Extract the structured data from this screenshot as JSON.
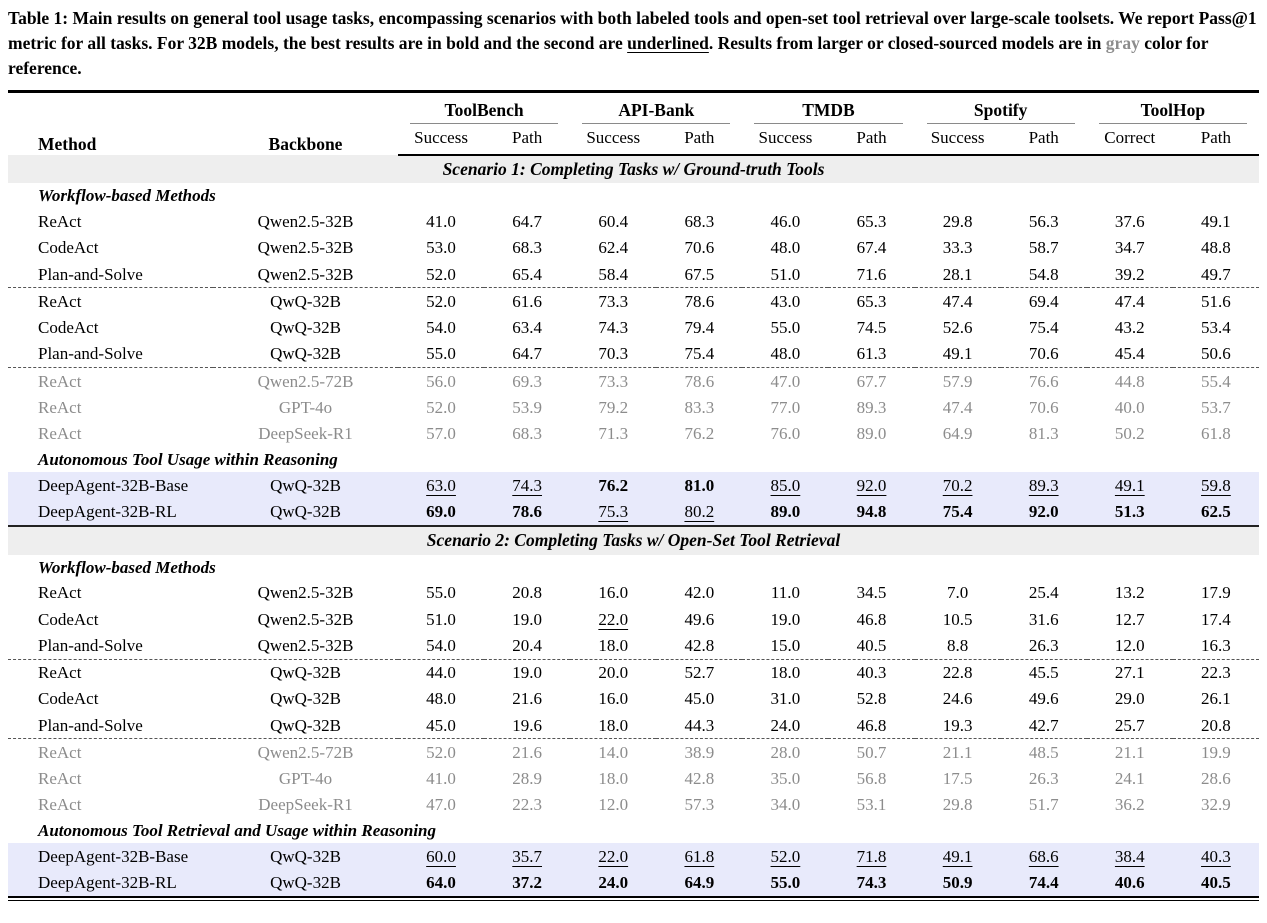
{
  "colors": {
    "highlight": "#e8eafb",
    "band": "#eeeeee",
    "gray_text": "#8c8c8c"
  },
  "caption": {
    "segments": [
      {
        "text": "Table 1: Main results on general tool usage tasks, encompassing scenarios with both labeled tools and open-set tool retrieval over large-scale toolsets. We report Pass@1 metric for all tasks. For 32B models, the best results are in bold and the second are ",
        "style": "plain"
      },
      {
        "text": "underlined",
        "style": "u"
      },
      {
        "text": ". Results from larger or closed-sourced models are in ",
        "style": "plain"
      },
      {
        "text": "gray",
        "style": "gray"
      },
      {
        "text": " color for reference.",
        "style": "plain"
      }
    ]
  },
  "table": {
    "header": {
      "method": "Method",
      "backbone": "Backbone",
      "groups": [
        {
          "name": "ToolBench",
          "cols": [
            "Success",
            "Path"
          ]
        },
        {
          "name": "API-Bank",
          "cols": [
            "Success",
            "Path"
          ]
        },
        {
          "name": "TMDB",
          "cols": [
            "Success",
            "Path"
          ]
        },
        {
          "name": "Spotify",
          "cols": [
            "Success",
            "Path"
          ]
        },
        {
          "name": "ToolHop",
          "cols": [
            "Correct",
            "Path"
          ]
        }
      ]
    },
    "sections": [
      {
        "title": "Scenario 1: Completing Tasks w/ Ground-truth Tools",
        "blocks": [
          {
            "subtitle": "Workflow-based Methods",
            "rows": [
              {
                "method": "ReAct",
                "backbone": "Qwen2.5-32B",
                "style": "",
                "values": [
                  "41.0",
                  "64.7",
                  "60.4",
                  "68.3",
                  "46.0",
                  "65.3",
                  "29.8",
                  "56.3",
                  "37.6",
                  "49.1"
                ],
                "marks": [
                  "",
                  "",
                  "",
                  "",
                  "",
                  "",
                  "",
                  "",
                  "",
                  ""
                ]
              },
              {
                "method": "CodeAct",
                "backbone": "Qwen2.5-32B",
                "style": "",
                "values": [
                  "53.0",
                  "68.3",
                  "62.4",
                  "70.6",
                  "48.0",
                  "67.4",
                  "33.3",
                  "58.7",
                  "34.7",
                  "48.8"
                ],
                "marks": [
                  "",
                  "",
                  "",
                  "",
                  "",
                  "",
                  "",
                  "",
                  "",
                  ""
                ]
              },
              {
                "method": "Plan-and-Solve",
                "backbone": "Qwen2.5-32B",
                "style": "",
                "dashed_after": true,
                "values": [
                  "52.0",
                  "65.4",
                  "58.4",
                  "67.5",
                  "51.0",
                  "71.6",
                  "28.1",
                  "54.8",
                  "39.2",
                  "49.7"
                ],
                "marks": [
                  "",
                  "",
                  "",
                  "",
                  "",
                  "",
                  "",
                  "",
                  "",
                  ""
                ]
              },
              {
                "method": "ReAct",
                "backbone": "QwQ-32B",
                "style": "",
                "values": [
                  "52.0",
                  "61.6",
                  "73.3",
                  "78.6",
                  "43.0",
                  "65.3",
                  "47.4",
                  "69.4",
                  "47.4",
                  "51.6"
                ],
                "marks": [
                  "",
                  "",
                  "",
                  "",
                  "",
                  "",
                  "",
                  "",
                  "",
                  ""
                ]
              },
              {
                "method": "CodeAct",
                "backbone": "QwQ-32B",
                "style": "",
                "values": [
                  "54.0",
                  "63.4",
                  "74.3",
                  "79.4",
                  "55.0",
                  "74.5",
                  "52.6",
                  "75.4",
                  "43.2",
                  "53.4"
                ],
                "marks": [
                  "",
                  "",
                  "",
                  "",
                  "",
                  "",
                  "",
                  "",
                  "",
                  ""
                ]
              },
              {
                "method": "Plan-and-Solve",
                "backbone": "QwQ-32B",
                "style": "",
                "dashed_after": true,
                "values": [
                  "55.0",
                  "64.7",
                  "70.3",
                  "75.4",
                  "48.0",
                  "61.3",
                  "49.1",
                  "70.6",
                  "45.4",
                  "50.6"
                ],
                "marks": [
                  "",
                  "",
                  "",
                  "",
                  "",
                  "",
                  "",
                  "",
                  "",
                  ""
                ]
              },
              {
                "method": "ReAct",
                "backbone": "Qwen2.5-72B",
                "style": "gray",
                "values": [
                  "56.0",
                  "69.3",
                  "73.3",
                  "78.6",
                  "47.0",
                  "67.7",
                  "57.9",
                  "76.6",
                  "44.8",
                  "55.4"
                ],
                "marks": [
                  "",
                  "",
                  "",
                  "",
                  "",
                  "",
                  "",
                  "",
                  "",
                  ""
                ]
              },
              {
                "method": "ReAct",
                "backbone": "GPT-4o",
                "style": "gray",
                "values": [
                  "52.0",
                  "53.9",
                  "79.2",
                  "83.3",
                  "77.0",
                  "89.3",
                  "47.4",
                  "70.6",
                  "40.0",
                  "53.7"
                ],
                "marks": [
                  "",
                  "",
                  "",
                  "",
                  "",
                  "",
                  "",
                  "",
                  "",
                  ""
                ]
              },
              {
                "method": "ReAct",
                "backbone": "DeepSeek-R1",
                "style": "gray",
                "values": [
                  "57.0",
                  "68.3",
                  "71.3",
                  "76.2",
                  "76.0",
                  "89.0",
                  "64.9",
                  "81.3",
                  "50.2",
                  "61.8"
                ],
                "marks": [
                  "",
                  "",
                  "",
                  "",
                  "",
                  "",
                  "",
                  "",
                  "",
                  ""
                ]
              }
            ]
          },
          {
            "subtitle": "Autonomous Tool Usage within Reasoning",
            "rows": [
              {
                "method": "DeepAgent-32B-Base",
                "backbone": "QwQ-32B",
                "style": "hl",
                "values": [
                  "63.0",
                  "74.3",
                  "76.2",
                  "81.0",
                  "85.0",
                  "92.0",
                  "70.2",
                  "89.3",
                  "49.1",
                  "59.8"
                ],
                "marks": [
                  "u",
                  "u",
                  "b",
                  "b",
                  "u",
                  "u",
                  "u",
                  "u",
                  "u",
                  "u"
                ]
              },
              {
                "method": "DeepAgent-32B-RL",
                "backbone": "QwQ-32B",
                "style": "hl",
                "values": [
                  "69.0",
                  "78.6",
                  "75.3",
                  "80.2",
                  "89.0",
                  "94.8",
                  "75.4",
                  "92.0",
                  "51.3",
                  "62.5"
                ],
                "marks": [
                  "b",
                  "b",
                  "u",
                  "u",
                  "b",
                  "b",
                  "b",
                  "b",
                  "b",
                  "b"
                ]
              }
            ]
          }
        ]
      },
      {
        "title": "Scenario 2: Completing Tasks w/ Open-Set Tool Retrieval",
        "blocks": [
          {
            "subtitle": "Workflow-based Methods",
            "rows": [
              {
                "method": "ReAct",
                "backbone": "Qwen2.5-32B",
                "style": "",
                "values": [
                  "55.0",
                  "20.8",
                  "16.0",
                  "42.0",
                  "11.0",
                  "34.5",
                  "7.0",
                  "25.4",
                  "13.2",
                  "17.9"
                ],
                "marks": [
                  "",
                  "",
                  "",
                  "",
                  "",
                  "",
                  "",
                  "",
                  "",
                  ""
                ]
              },
              {
                "method": "CodeAct",
                "backbone": "Qwen2.5-32B",
                "style": "",
                "values": [
                  "51.0",
                  "19.0",
                  "22.0",
                  "49.6",
                  "19.0",
                  "46.8",
                  "10.5",
                  "31.6",
                  "12.7",
                  "17.4"
                ],
                "marks": [
                  "",
                  "",
                  "u",
                  "",
                  "",
                  "",
                  "",
                  "",
                  "",
                  ""
                ]
              },
              {
                "method": "Plan-and-Solve",
                "backbone": "Qwen2.5-32B",
                "style": "",
                "dashed_after": true,
                "values": [
                  "54.0",
                  "20.4",
                  "18.0",
                  "42.8",
                  "15.0",
                  "40.5",
                  "8.8",
                  "26.3",
                  "12.0",
                  "16.3"
                ],
                "marks": [
                  "",
                  "",
                  "",
                  "",
                  "",
                  "",
                  "",
                  "",
                  "",
                  ""
                ]
              },
              {
                "method": "ReAct",
                "backbone": "QwQ-32B",
                "style": "",
                "values": [
                  "44.0",
                  "19.0",
                  "20.0",
                  "52.7",
                  "18.0",
                  "40.3",
                  "22.8",
                  "45.5",
                  "27.1",
                  "22.3"
                ],
                "marks": [
                  "",
                  "",
                  "",
                  "",
                  "",
                  "",
                  "",
                  "",
                  "",
                  ""
                ]
              },
              {
                "method": "CodeAct",
                "backbone": "QwQ-32B",
                "style": "",
                "values": [
                  "48.0",
                  "21.6",
                  "16.0",
                  "45.0",
                  "31.0",
                  "52.8",
                  "24.6",
                  "49.6",
                  "29.0",
                  "26.1"
                ],
                "marks": [
                  "",
                  "",
                  "",
                  "",
                  "",
                  "",
                  "",
                  "",
                  "",
                  ""
                ]
              },
              {
                "method": "Plan-and-Solve",
                "backbone": "QwQ-32B",
                "style": "",
                "dashed_after": true,
                "values": [
                  "45.0",
                  "19.6",
                  "18.0",
                  "44.3",
                  "24.0",
                  "46.8",
                  "19.3",
                  "42.7",
                  "25.7",
                  "20.8"
                ],
                "marks": [
                  "",
                  "",
                  "",
                  "",
                  "",
                  "",
                  "",
                  "",
                  "",
                  ""
                ]
              },
              {
                "method": "ReAct",
                "backbone": "Qwen2.5-72B",
                "style": "gray",
                "values": [
                  "52.0",
                  "21.6",
                  "14.0",
                  "38.9",
                  "28.0",
                  "50.7",
                  "21.1",
                  "48.5",
                  "21.1",
                  "19.9"
                ],
                "marks": [
                  "",
                  "",
                  "",
                  "",
                  "",
                  "",
                  "",
                  "",
                  "",
                  ""
                ]
              },
              {
                "method": "ReAct",
                "backbone": "GPT-4o",
                "style": "gray",
                "values": [
                  "41.0",
                  "28.9",
                  "18.0",
                  "42.8",
                  "35.0",
                  "56.8",
                  "17.5",
                  "26.3",
                  "24.1",
                  "28.6"
                ],
                "marks": [
                  "",
                  "",
                  "",
                  "",
                  "",
                  "",
                  "",
                  "",
                  "",
                  ""
                ]
              },
              {
                "method": "ReAct",
                "backbone": "DeepSeek-R1",
                "style": "gray",
                "values": [
                  "47.0",
                  "22.3",
                  "12.0",
                  "57.3",
                  "34.0",
                  "53.1",
                  "29.8",
                  "51.7",
                  "36.2",
                  "32.9"
                ],
                "marks": [
                  "",
                  "",
                  "",
                  "",
                  "",
                  "",
                  "",
                  "",
                  "",
                  ""
                ]
              }
            ]
          },
          {
            "subtitle": "Autonomous Tool Retrieval and Usage within Reasoning",
            "rows": [
              {
                "method": "DeepAgent-32B-Base",
                "backbone": "QwQ-32B",
                "style": "hl",
                "values": [
                  "60.0",
                  "35.7",
                  "22.0",
                  "61.8",
                  "52.0",
                  "71.8",
                  "49.1",
                  "68.6",
                  "38.4",
                  "40.3"
                ],
                "marks": [
                  "u",
                  "u",
                  "u",
                  "u",
                  "u",
                  "u",
                  "u",
                  "u",
                  "u",
                  "u"
                ]
              },
              {
                "method": "DeepAgent-32B-RL",
                "backbone": "QwQ-32B",
                "style": "hl",
                "values": [
                  "64.0",
                  "37.2",
                  "24.0",
                  "64.9",
                  "55.0",
                  "74.3",
                  "50.9",
                  "74.4",
                  "40.6",
                  "40.5"
                ],
                "marks": [
                  "b",
                  "b",
                  "b",
                  "b",
                  "b",
                  "b",
                  "b",
                  "b",
                  "b",
                  "b"
                ]
              }
            ]
          }
        ]
      }
    ]
  }
}
